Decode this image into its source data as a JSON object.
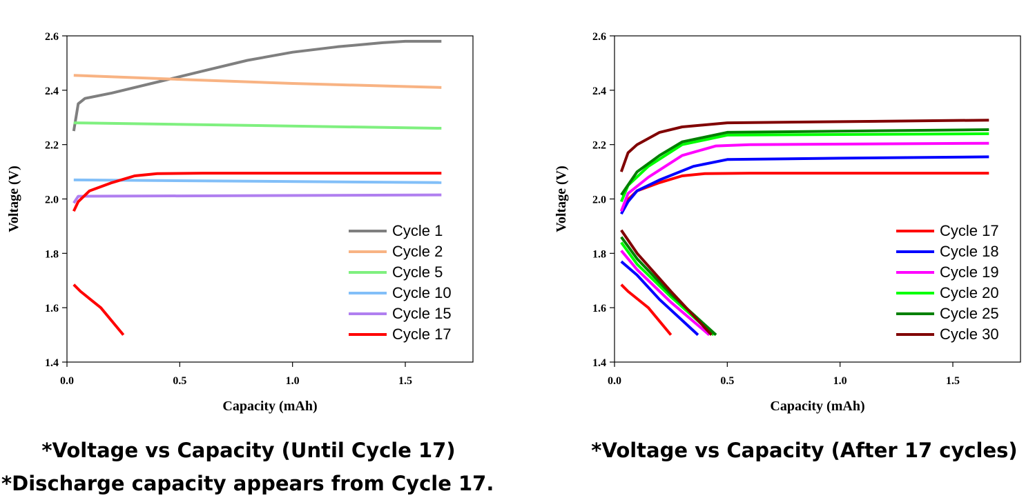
{
  "chart_data": [
    {
      "type": "line",
      "xlabel": "Capacity (mAh)",
      "ylabel": "Voltage (V)",
      "caption": "*Voltage vs Capacity (Until Cycle 17)",
      "note": "*Discharge capacity appears from Cycle 17.",
      "xlim": [
        0,
        1.8
      ],
      "ylim": [
        1.4,
        2.6
      ],
      "xticks": [
        {
          "value": 0,
          "label": "0.0"
        },
        0.5,
        {
          "value": 1,
          "label": "1.0"
        },
        1.5
      ],
      "yticks": [
        1.4,
        1.6,
        1.8,
        {
          "value": 2,
          "label": "2.0"
        },
        2.2,
        2.4,
        2.6
      ],
      "legend": "lower right",
      "series": [
        {
          "name": "Cycle 1",
          "color": "#7f7f7f",
          "x": [
            0.03,
            0.05,
            0.08,
            0.2,
            0.4,
            0.6,
            0.8,
            1.0,
            1.2,
            1.4,
            1.5,
            1.66
          ],
          "values": [
            2.25,
            2.35,
            2.37,
            2.39,
            2.43,
            2.47,
            2.51,
            2.54,
            2.56,
            2.575,
            2.58,
            2.58
          ]
        },
        {
          "name": "Cycle 2",
          "color": "#f8b383",
          "x": [
            0.03,
            0.5,
            1.0,
            1.66
          ],
          "values": [
            2.455,
            2.44,
            2.425,
            2.41
          ]
        },
        {
          "name": "Cycle 5",
          "color": "#7ff07f",
          "x": [
            0.03,
            1.66
          ],
          "values": [
            2.28,
            2.26
          ]
        },
        {
          "name": "Cycle 10",
          "color": "#82bff8",
          "x": [
            0.03,
            1.66
          ],
          "values": [
            2.07,
            2.06
          ]
        },
        {
          "name": "Cycle 15",
          "color": "#b07ff0",
          "x": [
            0.03,
            0.05,
            1.66
          ],
          "values": [
            1.985,
            2.01,
            2.015
          ]
        },
        {
          "name": "Cycle 17",
          "color": "#ff0000",
          "x": [
            0.03,
            0.05,
            0.1,
            0.2,
            0.3,
            0.4,
            0.6,
            1.66,
            null,
            0.03,
            0.06,
            0.15,
            0.25
          ],
          "values": [
            1.955,
            1.99,
            2.03,
            2.06,
            2.085,
            2.093,
            2.095,
            2.095,
            null,
            1.685,
            1.66,
            1.6,
            1.5
          ]
        }
      ]
    },
    {
      "type": "line",
      "xlabel": "Capacity (mAh)",
      "ylabel": "Voltage (V)",
      "caption": "*Voltage vs Capacity (After 17 cycles)",
      "xlim": [
        0,
        1.8
      ],
      "ylim": [
        1.4,
        2.6
      ],
      "xticks": [
        {
          "value": 0,
          "label": "0.0"
        },
        0.5,
        {
          "value": 1,
          "label": "1.0"
        },
        1.5
      ],
      "yticks": [
        1.4,
        1.6,
        1.8,
        {
          "value": 2,
          "label": "2.0"
        },
        2.2,
        2.4,
        2.6
      ],
      "legend": "lower right",
      "series": [
        {
          "name": "Cycle 17",
          "color": "#ff0000",
          "x": [
            0.03,
            0.05,
            0.1,
            0.2,
            0.3,
            0.4,
            0.6,
            1.66,
            null,
            0.03,
            0.06,
            0.15,
            0.25
          ],
          "values": [
            1.955,
            1.99,
            2.03,
            2.06,
            2.085,
            2.093,
            2.095,
            2.095,
            null,
            1.685,
            1.66,
            1.6,
            1.5
          ]
        },
        {
          "name": "Cycle 18",
          "color": "#0000ff",
          "x": [
            0.03,
            0.06,
            0.1,
            0.2,
            0.35,
            0.5,
            1.0,
            1.66,
            null,
            0.03,
            0.1,
            0.2,
            0.37
          ],
          "values": [
            1.945,
            1.99,
            2.03,
            2.07,
            2.12,
            2.145,
            2.15,
            2.155,
            null,
            1.77,
            1.72,
            1.63,
            1.5
          ]
        },
        {
          "name": "Cycle 19",
          "color": "#ff00ff",
          "x": [
            0.03,
            0.06,
            0.15,
            0.3,
            0.45,
            0.6,
            1.66,
            null,
            0.03,
            0.1,
            0.25,
            0.42
          ],
          "values": [
            1.955,
            2.02,
            2.08,
            2.16,
            2.195,
            2.2,
            2.205,
            null,
            1.81,
            1.74,
            1.62,
            1.5
          ]
        },
        {
          "name": "Cycle 20",
          "color": "#00ff00",
          "x": [
            0.03,
            0.06,
            0.15,
            0.3,
            0.5,
            1.66,
            null,
            0.03,
            0.1,
            0.25,
            0.44
          ],
          "values": [
            1.99,
            2.05,
            2.12,
            2.2,
            2.235,
            2.24,
            null,
            1.84,
            1.76,
            1.64,
            1.5
          ]
        },
        {
          "name": "Cycle 25",
          "color": "#008000",
          "x": [
            0.03,
            0.1,
            0.2,
            0.3,
            0.5,
            1.66,
            null,
            0.03,
            0.1,
            0.25,
            0.45
          ],
          "values": [
            2.015,
            2.1,
            2.16,
            2.21,
            2.245,
            2.255,
            null,
            1.86,
            1.78,
            1.65,
            1.5
          ]
        },
        {
          "name": "Cycle 30",
          "color": "#800000",
          "x": [
            0.03,
            0.06,
            0.1,
            0.2,
            0.3,
            0.5,
            1.66,
            null,
            0.03,
            0.1,
            0.25,
            0.43
          ],
          "values": [
            2.1,
            2.17,
            2.2,
            2.245,
            2.265,
            2.28,
            2.29,
            null,
            1.885,
            1.8,
            1.66,
            1.5
          ]
        }
      ]
    }
  ]
}
